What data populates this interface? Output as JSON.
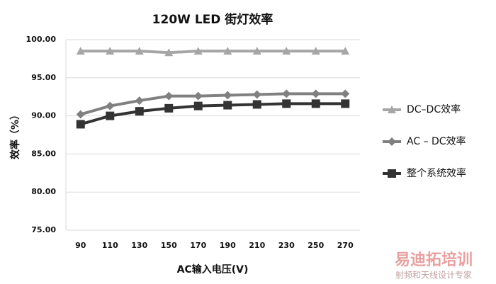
{
  "chart_data": {
    "type": "line",
    "title": "120W LED 街灯效率",
    "xlabel": "AC输入电压(V)",
    "ylabel": "效率（%）",
    "categories": [
      "90",
      "110",
      "130",
      "150",
      "170",
      "190",
      "210",
      "230",
      "250",
      "270"
    ],
    "ylim": [
      75,
      100
    ],
    "yticks": [
      {
        "value": 75,
        "label": "75.00"
      },
      {
        "value": 80,
        "label": "80.00"
      },
      {
        "value": 85,
        "label": "85.00"
      },
      {
        "value": 90,
        "label": "90.00"
      },
      {
        "value": 95,
        "label": "95.00"
      },
      {
        "value": 100,
        "label": "100.00"
      }
    ],
    "grid": true,
    "legend": "right",
    "series": [
      {
        "name": "DC–DC效率",
        "color": "#a6a6a6",
        "marker": "triangle",
        "values": [
          98.5,
          98.5,
          98.5,
          98.3,
          98.5,
          98.5,
          98.5,
          98.5,
          98.5,
          98.5
        ]
      },
      {
        "name": "AC – DC效率",
        "color": "#808080",
        "marker": "diamond",
        "values": [
          90.2,
          91.3,
          92.0,
          92.6,
          92.6,
          92.7,
          92.8,
          92.9,
          92.9,
          92.9
        ]
      },
      {
        "name": "整个系统效率",
        "color": "#333333",
        "marker": "square",
        "values": [
          88.9,
          90.0,
          90.6,
          91.0,
          91.3,
          91.4,
          91.5,
          91.6,
          91.6,
          91.6
        ]
      }
    ]
  },
  "watermark": {
    "brand": "易迪拓培训",
    "slogan": "射频和天线设计专家"
  }
}
